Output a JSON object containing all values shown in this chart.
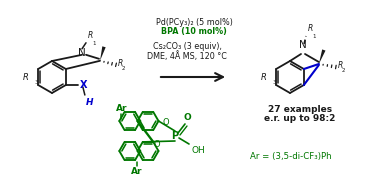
{
  "bg_color": "#ffffff",
  "black": "#1a1a1a",
  "green": "#007700",
  "blue": "#0000cc",
  "cond1": "Pd(PCy₃)₂ (5 mol%)",
  "cond2": "BPA (10 mol%)",
  "cond3": "Cs₂CO₃ (3 equiv),",
  "cond4": "DME, 4Å MS, 120 °C",
  "prod1": "27 examples",
  "prod2": "e.r. up to 98:2",
  "ar_def": "Ar = (3,5-di-CF₃)Ph"
}
